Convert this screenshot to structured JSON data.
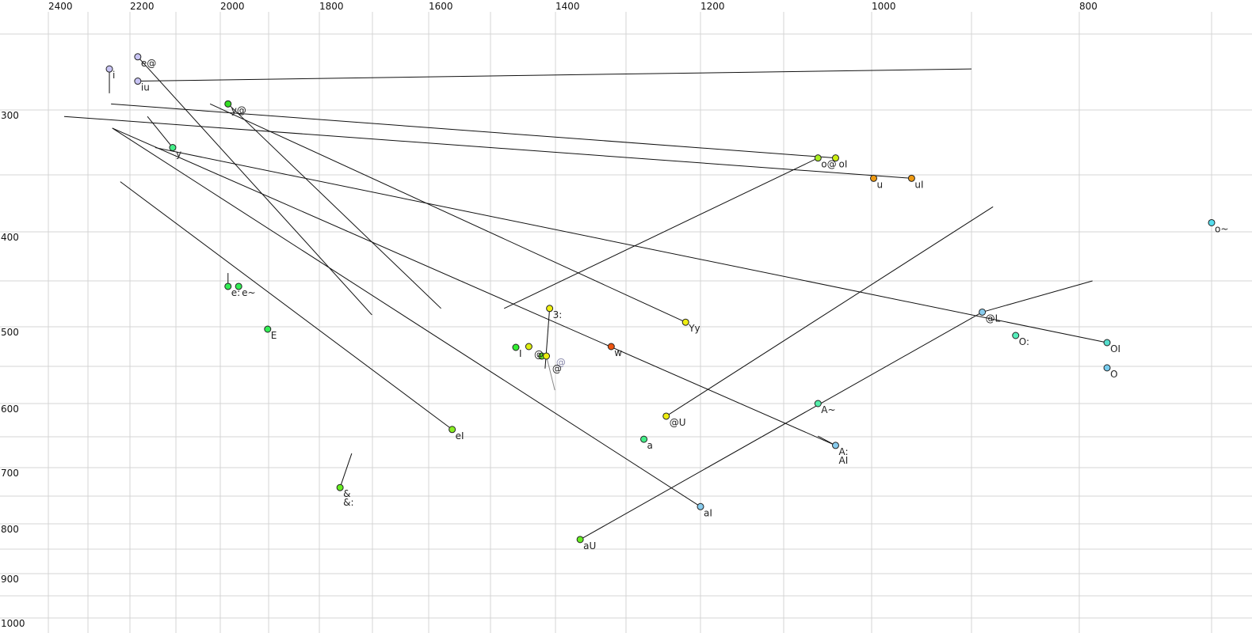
{
  "chart_data": {
    "type": "scatter",
    "title": "",
    "xlabel": "",
    "ylabel": "",
    "x_axis": {
      "position": "top",
      "reversed": true,
      "scale": "nonlinear (perceptual)",
      "xlim": [
        2520,
        690
      ],
      "tick_labels": [
        "2400",
        "2200",
        "2000",
        "1800",
        "1600",
        "1400",
        "1200",
        "1000",
        "800"
      ],
      "grid_values": [
        2400,
        2300,
        2200,
        2100,
        2000,
        1900,
        1800,
        1700,
        1600,
        1500,
        1400,
        1300,
        1200,
        1100,
        1000,
        900,
        800,
        700
      ]
    },
    "y_axis": {
      "position": "left",
      "reversed": false,
      "scale": "nonlinear (perceptual)",
      "ylim": [
        230,
        1025
      ],
      "tick_labels": [
        "300",
        "400",
        "500",
        "600",
        "700",
        "800",
        "900",
        "1000"
      ],
      "grid_values": [
        250,
        300,
        350,
        400,
        450,
        500,
        550,
        600,
        650,
        700,
        750,
        800,
        850,
        900,
        950,
        1000
      ]
    },
    "grid": true,
    "points": [
      {
        "label": "i",
        "F2": 2249,
        "F1": 273,
        "color": "#c8c4f4"
      },
      {
        "label": "e@",
        "F2": 2183,
        "F1": 265,
        "color": "#c8c4f4"
      },
      {
        "label": "iu",
        "F2": 2183,
        "F1": 281,
        "color": "#c8c4f4"
      },
      {
        "label": "y@",
        "F2": 1984,
        "F1": 296,
        "color": "#33dd22"
      },
      {
        "label": "y",
        "F2": 2107,
        "F1": 329,
        "color": "#44ee88"
      },
      {
        "label": "o@",
        "F2": 1061,
        "F1": 337,
        "color": "#aaee22"
      },
      {
        "label": "oI",
        "F2": 1041,
        "F1": 337,
        "color": "#ccee11"
      },
      {
        "label": "u",
        "F2": 998,
        "F1": 353,
        "color": "#ee9911"
      },
      {
        "label": "uI",
        "F2": 960,
        "F1": 353,
        "color": "#ee9911"
      },
      {
        "label": "o~",
        "F2": 700,
        "F1": 392,
        "color": "#55ddee"
      },
      {
        "label": "e:",
        "F2": 1984,
        "F1": 456,
        "color": "#33ee55"
      },
      {
        "label": "e~",
        "F2": 1962,
        "F1": 456,
        "color": "#33ee55"
      },
      {
        "label": "E",
        "F2": 1902,
        "F1": 503,
        "color": "#33ee55"
      },
      {
        "label": "eI",
        "F2": 1562,
        "F1": 639,
        "color": "#88ee22"
      },
      {
        "label": "&",
        "label2": "&:",
        "F2": 1761,
        "F1": 735,
        "color": "#66ee22"
      },
      {
        "label": "I",
        "F2": 1461,
        "F1": 526,
        "color": "#33ee33"
      },
      {
        "label": "",
        "F2": 1441,
        "F1": 525,
        "color": "#dded11"
      },
      {
        "label": "",
        "F2": 1421,
        "F1": 537,
        "color": "#66ee22"
      },
      {
        "label": "",
        "F2": 1414,
        "F1": 537,
        "color": "#eeee11"
      },
      {
        "label": "3:",
        "F2": 1409,
        "F1": 480,
        "color": "#eeee11"
      },
      {
        "label": "w",
        "F2": 1321,
        "F1": 525,
        "color": "#ee5511"
      },
      {
        "label": "Yy",
        "F2": 1220,
        "F1": 495,
        "color": "#eeee11"
      },
      {
        "label": "@U",
        "F2": 1246,
        "F1": 619,
        "color": "#eeee11"
      },
      {
        "label": "a",
        "F2": 1276,
        "F1": 654,
        "color": "#44ee88"
      },
      {
        "label": "aI",
        "F2": 1200,
        "F1": 769,
        "color": "#88ccee"
      },
      {
        "label": "aU",
        "F2": 1365,
        "F1": 831,
        "color": "#66ee22"
      },
      {
        "label": "A~",
        "F2": 1061,
        "F1": 600,
        "color": "#55eeaa"
      },
      {
        "label": "A:",
        "label2": "AI",
        "F2": 1041,
        "F1": 664,
        "color": "#88ccee"
      },
      {
        "label": "@L",
        "F2": 890,
        "F1": 484,
        "color": "#88ccee"
      },
      {
        "label": "O:",
        "F2": 859,
        "F1": 511,
        "color": "#55eebb"
      },
      {
        "label": "OI",
        "F2": 779,
        "F1": 520,
        "color": "#55ddcc"
      },
      {
        "label": "O",
        "F2": 779,
        "F1": 552,
        "color": "#77ccee"
      }
    ],
    "extra_labels": [
      {
        "text": "@",
        "F2": 1433,
        "F1": 535,
        "color": "#222222"
      },
      {
        "text": "@",
        "F2": 1399,
        "F1": 545,
        "color": "#8888aa"
      },
      {
        "text": "@",
        "F2": 1405,
        "F1": 553,
        "color": "#222222"
      }
    ],
    "trajectories": [
      {
        "from": [
          2249,
          273
        ],
        "to": [
          2249,
          289
        ]
      },
      {
        "from": [
          2183,
          281
        ],
        "to": [
          900,
          273
        ]
      },
      {
        "from": [
          2183,
          265
        ],
        "to": [
          1701,
          487
        ]
      },
      {
        "from": [
          2023,
          296
        ],
        "to": [
          1220,
          495
        ]
      },
      {
        "from": [
          1984,
          296
        ],
        "to": [
          1580,
          480
        ]
      },
      {
        "from": [
          2245,
          296
        ],
        "to": [
          1041,
          337
        ]
      },
      {
        "from": [
          2360,
          305
        ],
        "to": [
          960,
          353
        ]
      },
      {
        "from": [
          2162,
          305
        ],
        "to": [
          2107,
          329
        ]
      },
      {
        "from": [
          2145,
          329
        ],
        "to": [
          779,
          520
        ]
      },
      {
        "from": [
          2242,
          314
        ],
        "to": [
          1041,
          664
        ]
      },
      {
        "from": [
          2242,
          314
        ],
        "to": [
          1200,
          769
        ]
      },
      {
        "from": [
          2223,
          356
        ],
        "to": [
          1562,
          639
        ]
      },
      {
        "from": [
          1984,
          442
        ],
        "to": [
          1984,
          456
        ]
      },
      {
        "from": [
          1761,
          735
        ],
        "to": [
          1739,
          677
        ]
      },
      {
        "from": [
          1479,
          480
        ],
        "to": [
          1061,
          337
        ]
      },
      {
        "from": [
          1246,
          619
        ],
        "to": [
          880,
          378
        ]
      },
      {
        "from": [
          1365,
          831
        ],
        "to": [
          890,
          484
        ]
      },
      {
        "from": [
          890,
          484
        ],
        "to": [
          790,
          450
        ]
      },
      {
        "from": [
          1409,
          480
        ],
        "to": [
          1416,
          553
        ]
      },
      {
        "from": [
          1061,
          649
        ],
        "to": [
          1041,
          664
        ]
      }
    ],
    "grey_trajectories": [
      {
        "from": [
          1414,
          537
        ],
        "to": [
          1401,
          582
        ]
      }
    ]
  }
}
